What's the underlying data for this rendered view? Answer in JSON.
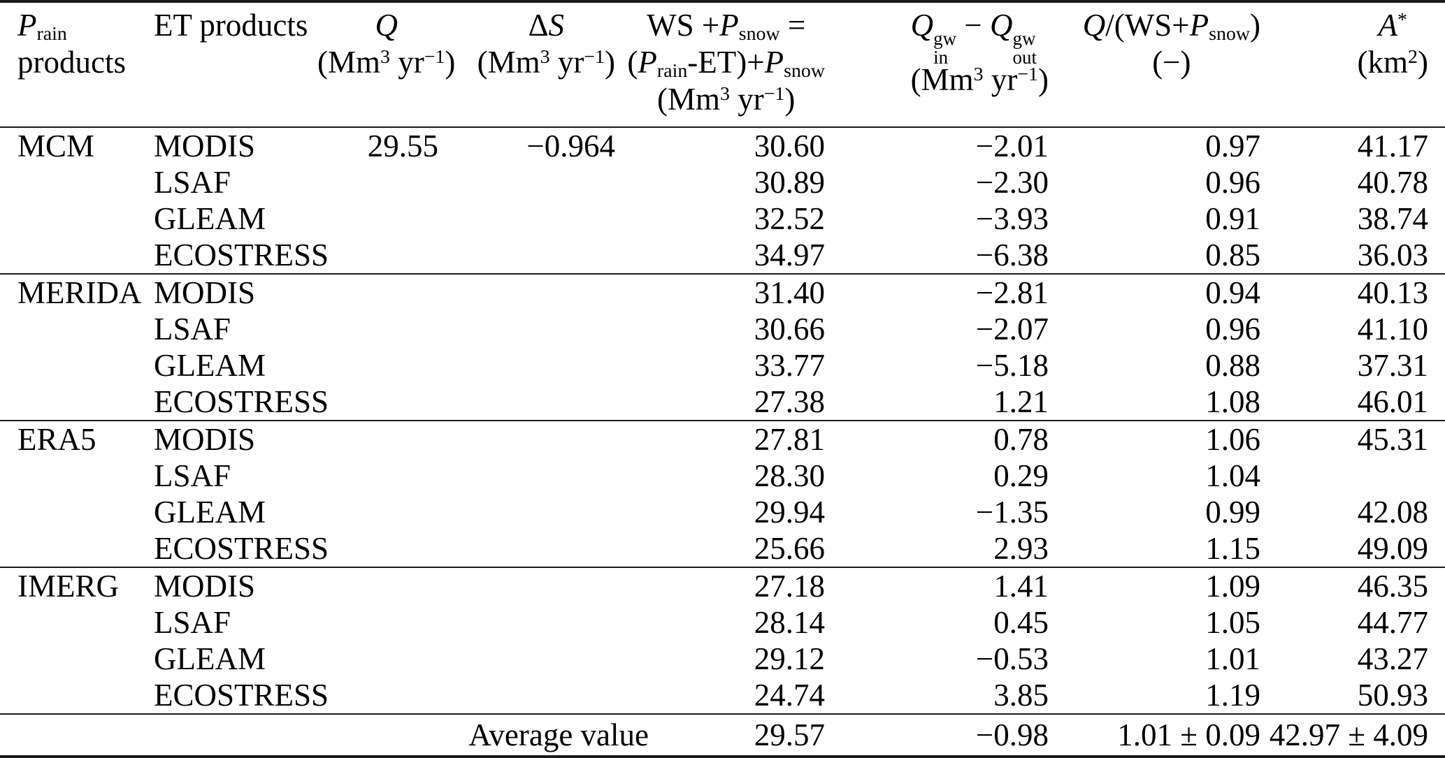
{
  "table": {
    "headers": {
      "prain": {
        "line1": [
          {
            "t": "P",
            "s": "i"
          },
          {
            "t": "rain",
            "s": "sub"
          }
        ],
        "line2": [
          {
            "t": "products"
          }
        ]
      },
      "et": {
        "line1": [
          {
            "t": "ET products"
          }
        ]
      },
      "q": {
        "line1": [
          {
            "t": "Q",
            "s": "i"
          }
        ],
        "line2": [
          {
            "t": "(Mm"
          },
          {
            "t": "3",
            "s": "sup"
          },
          {
            "t": " yr"
          },
          {
            "t": "−1",
            "s": "sup"
          },
          {
            "t": ")"
          }
        ]
      },
      "ds": {
        "line1": [
          {
            "t": "Δ"
          },
          {
            "t": "S",
            "s": "i"
          }
        ],
        "line2": [
          {
            "t": "(Mm"
          },
          {
            "t": "3",
            "s": "sup"
          },
          {
            "t": " yr"
          },
          {
            "t": "−1",
            "s": "sup"
          },
          {
            "t": ")"
          }
        ]
      },
      "ws": {
        "line1": [
          {
            "t": "WS +"
          },
          {
            "t": "P",
            "s": "i"
          },
          {
            "t": "snow",
            "s": "sub"
          },
          {
            "t": " ="
          }
        ],
        "line2": [
          {
            "t": "("
          },
          {
            "t": "P",
            "s": "i"
          },
          {
            "t": "rain",
            "s": "sub"
          },
          {
            "t": "-ET)+"
          },
          {
            "t": "P",
            "s": "i"
          },
          {
            "t": "snow",
            "s": "sub"
          }
        ],
        "line3": [
          {
            "t": "(Mm"
          },
          {
            "t": "3",
            "s": "sup"
          },
          {
            "t": " yr"
          },
          {
            "t": "−1",
            "s": "sup"
          },
          {
            "t": ")"
          }
        ]
      },
      "qgw": {
        "line1": [
          {
            "t": "Q",
            "s": "i"
          },
          {
            "sup": "gw",
            "sub": "in"
          },
          {
            "t": " − "
          },
          {
            "t": "Q",
            "s": "i"
          },
          {
            "sup": "gw",
            "sub": "out"
          }
        ],
        "line2": [
          {
            "t": "(Mm"
          },
          {
            "t": "3",
            "s": "sup"
          },
          {
            "t": " yr"
          },
          {
            "t": "−1",
            "s": "sup"
          },
          {
            "t": ")"
          }
        ]
      },
      "ratio": {
        "line1": [
          {
            "t": "Q",
            "s": "i"
          },
          {
            "t": "/(WS+"
          },
          {
            "t": "P",
            "s": "i"
          },
          {
            "t": "snow",
            "s": "sub"
          },
          {
            "t": ")"
          }
        ],
        "line2": [
          {
            "t": "(−)"
          }
        ]
      },
      "area": {
        "line1": [
          {
            "t": "A",
            "s": "i"
          },
          {
            "t": "*",
            "s": "sup"
          }
        ],
        "line2": [
          {
            "t": "(km"
          },
          {
            "t": "2",
            "s": "sup"
          },
          {
            "t": ")"
          }
        ]
      }
    },
    "groups": [
      {
        "name": "MCM",
        "rows": [
          {
            "et": "MODIS",
            "q": "29.55",
            "ds": "−0.964",
            "ws": "30.60",
            "qgw": "−2.01",
            "ratio": "0.97",
            "area": "41.17"
          },
          {
            "et": "LSAF",
            "q": "",
            "ds": "",
            "ws": "30.89",
            "qgw": "−2.30",
            "ratio": "0.96",
            "area": "40.78"
          },
          {
            "et": "GLEAM",
            "q": "",
            "ds": "",
            "ws": "32.52",
            "qgw": "−3.93",
            "ratio": "0.91",
            "area": "38.74"
          },
          {
            "et": "ECOSTRESS",
            "q": "",
            "ds": "",
            "ws": "34.97",
            "qgw": "−6.38",
            "ratio": "0.85",
            "area": "36.03"
          }
        ]
      },
      {
        "name": "MERIDA",
        "rows": [
          {
            "et": "MODIS",
            "q": "",
            "ds": "",
            "ws": "31.40",
            "qgw": "−2.81",
            "ratio": "0.94",
            "area": "40.13"
          },
          {
            "et": "LSAF",
            "q": "",
            "ds": "",
            "ws": "30.66",
            "qgw": "−2.07",
            "ratio": "0.96",
            "area": "41.10"
          },
          {
            "et": "GLEAM",
            "q": "",
            "ds": "",
            "ws": "33.77",
            "qgw": "−5.18",
            "ratio": "0.88",
            "area": "37.31"
          },
          {
            "et": "ECOSTRESS",
            "q": "",
            "ds": "",
            "ws": "27.38",
            "qgw": "1.21",
            "ratio": "1.08",
            "area": "46.01"
          }
        ]
      },
      {
        "name": "ERA5",
        "rows": [
          {
            "et": "MODIS",
            "q": "",
            "ds": "",
            "ws": "27.81",
            "qgw": "0.78",
            "ratio": "1.06",
            "area": "45.31"
          },
          {
            "et": "LSAF",
            "q": "",
            "ds": "",
            "ws": "28.30",
            "qgw": "0.29",
            "ratio": "1.04",
            "area": ""
          },
          {
            "et": "GLEAM",
            "q": "",
            "ds": "",
            "ws": "29.94",
            "qgw": "−1.35",
            "ratio": "0.99",
            "area": "42.08"
          },
          {
            "et": "ECOSTRESS",
            "q": "",
            "ds": "",
            "ws": "25.66",
            "qgw": "2.93",
            "ratio": "1.15",
            "area": "49.09"
          }
        ]
      },
      {
        "name": "IMERG",
        "rows": [
          {
            "et": "MODIS",
            "q": "",
            "ds": "",
            "ws": "27.18",
            "qgw": "1.41",
            "ratio": "1.09",
            "area": "46.35"
          },
          {
            "et": "LSAF",
            "q": "",
            "ds": "",
            "ws": "28.14",
            "qgw": "0.45",
            "ratio": "1.05",
            "area": "44.77"
          },
          {
            "et": "GLEAM",
            "q": "",
            "ds": "",
            "ws": "29.12",
            "qgw": "−0.53",
            "ratio": "1.01",
            "area": "43.27"
          },
          {
            "et": "ECOSTRESS",
            "q": "",
            "ds": "",
            "ws": "24.74",
            "qgw": "3.85",
            "ratio": "1.19",
            "area": "50.93"
          }
        ]
      }
    ],
    "average": {
      "label": "Average value",
      "ws": "29.57",
      "qgw": "−0.98",
      "ratio": "1.01 ± 0.09",
      "area": "42.97 ± 4.09"
    }
  }
}
